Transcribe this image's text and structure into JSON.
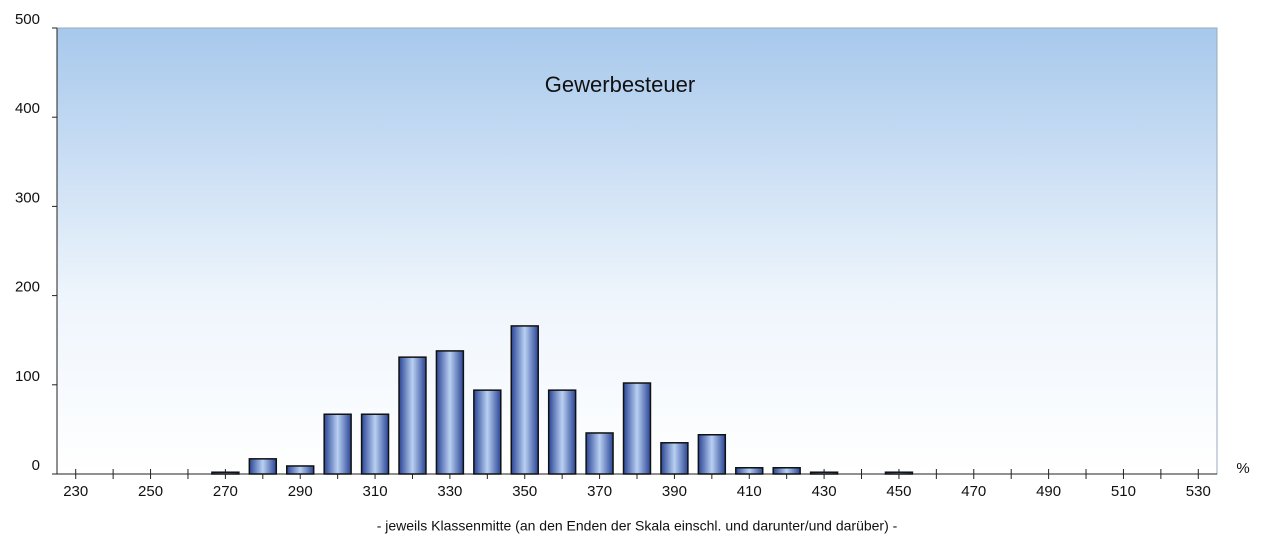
{
  "chart_data": {
    "type": "bar",
    "title": "Gewerbesteuer",
    "x_label": "- jeweils Klassenmitte (an den Enden der Skala einschl. und darunter/und darüber) -",
    "x_unit": "%",
    "categories": [
      "230",
      null,
      "250",
      null,
      "270",
      null,
      "290",
      null,
      "310",
      null,
      "330",
      null,
      "350",
      null,
      "370",
      null,
      "390",
      null,
      "410",
      null,
      "430",
      null,
      "450",
      null,
      "470",
      null,
      "490",
      null,
      "510",
      null,
      "530"
    ],
    "values": [
      0,
      0,
      0,
      0,
      2,
      17,
      9,
      67,
      67,
      131,
      138,
      94,
      166,
      94,
      46,
      102,
      35,
      44,
      7,
      7,
      2,
      0,
      2,
      0,
      0,
      0,
      0,
      0,
      0,
      0,
      0
    ],
    "color": "#3a5bb0",
    "ylim": [
      0,
      500
    ],
    "yticks": [
      0,
      100,
      200,
      300,
      400,
      500
    ],
    "grid": false
  }
}
